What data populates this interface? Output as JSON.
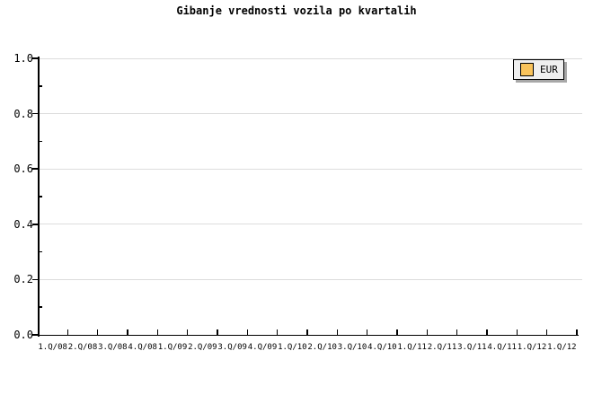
{
  "chart_data": {
    "type": "line",
    "title": "Gibanje vrednosti vozila po kvartalih",
    "categories": [
      "1.Q/08",
      "2.Q/08",
      "3.Q/08",
      "4.Q/08",
      "1.Q/09",
      "2.Q/09",
      "3.Q/09",
      "4.Q/09",
      "1.Q/10",
      "2.Q/10",
      "3.Q/10",
      "4.Q/10",
      "1.Q/11",
      "2.Q/11",
      "3.Q/11",
      "4.Q/11",
      "1.Q/12",
      "1.Q/12"
    ],
    "series": [
      {
        "name": "EUR",
        "values": []
      }
    ],
    "ylim": [
      0.0,
      1.0
    ],
    "y_tick_labels": [
      "1.0",
      "0.8",
      "0.6",
      "0.4",
      "0.2",
      "0.0"
    ],
    "y_minor_tick_interval": 0.1,
    "xlabel": "",
    "ylabel": "",
    "grid": "horizontal major gridlines only",
    "legend_position": "inside top-right",
    "plot_area_empty": true
  },
  "legend": {
    "items": [
      {
        "label": "EUR",
        "swatch_color": "#f9c35b"
      }
    ]
  },
  "colors": {
    "background": "#ffffff",
    "text": "#000000",
    "axis": "#000000",
    "gridline": "#dddddd",
    "legend_background": "#efefef",
    "legend_border": "#000000",
    "legend_shadow": "#a8a8a8",
    "eur_swatch": "#f9c35b"
  }
}
